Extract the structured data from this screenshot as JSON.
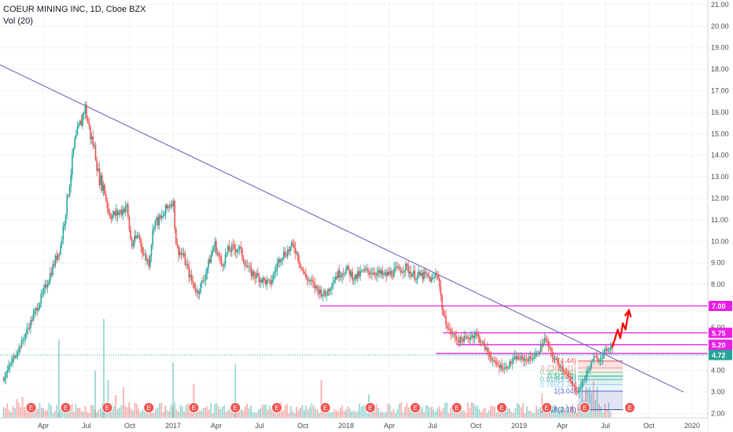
{
  "header": {
    "title": "COEUR MINING INC, 1D, Cboe BZX",
    "indicator": "Vol (20)"
  },
  "chart_data": {
    "type": "candlestick",
    "y_ticks": [
      "2.00",
      "3.00",
      "4.00",
      "5.00",
      "6.00",
      "7.00",
      "8.00",
      "9.00",
      "10.00",
      "11.00",
      "12.00",
      "13.00",
      "14.00",
      "15.00",
      "16.00",
      "17.00",
      "18.00",
      "19.00",
      "20.00",
      "21.00"
    ],
    "x_ticks": [
      {
        "label": "Apr",
        "t": 0.25
      },
      {
        "label": "Jul",
        "t": 0.5
      },
      {
        "label": "Oct",
        "t": 0.75
      },
      {
        "label": "2017",
        "t": 1.0
      },
      {
        "label": "Apr",
        "t": 1.25
      },
      {
        "label": "Jul",
        "t": 1.5
      },
      {
        "label": "Oct",
        "t": 1.75
      },
      {
        "label": "2018",
        "t": 2.0
      },
      {
        "label": "Apr",
        "t": 2.25
      },
      {
        "label": "Jul",
        "t": 2.5
      },
      {
        "label": "Oct",
        "t": 2.75
      },
      {
        "label": "2019",
        "t": 3.0
      },
      {
        "label": "Apr",
        "t": 3.25
      },
      {
        "label": "Jul",
        "t": 3.5
      },
      {
        "label": "Oct",
        "t": 3.75
      },
      {
        "label": "2020",
        "t": 4.0
      }
    ],
    "price_path": [
      [
        0.02,
        3.6
      ],
      [
        0.06,
        4.3
      ],
      [
        0.12,
        5.2
      ],
      [
        0.18,
        6.3
      ],
      [
        0.25,
        7.6
      ],
      [
        0.3,
        8.7
      ],
      [
        0.35,
        9.8
      ],
      [
        0.39,
        12.0
      ],
      [
        0.43,
        14.5
      ],
      [
        0.47,
        15.6
      ],
      [
        0.49,
        16.3
      ],
      [
        0.52,
        15.0
      ],
      [
        0.55,
        14.2
      ],
      [
        0.57,
        13.0
      ],
      [
        0.6,
        12.5
      ],
      [
        0.63,
        11.3
      ],
      [
        0.66,
        11.2
      ],
      [
        0.7,
        11.4
      ],
      [
        0.73,
        11.7
      ],
      [
        0.76,
        9.8
      ],
      [
        0.8,
        10.3
      ],
      [
        0.83,
        9.4
      ],
      [
        0.86,
        9.0
      ],
      [
        0.89,
        10.9
      ],
      [
        0.93,
        11.0
      ],
      [
        0.97,
        11.6
      ],
      [
        1.0,
        12.0
      ],
      [
        1.02,
        9.7
      ],
      [
        1.06,
        9.3
      ],
      [
        1.1,
        8.3
      ],
      [
        1.14,
        7.6
      ],
      [
        1.18,
        8.3
      ],
      [
        1.24,
        9.9
      ],
      [
        1.28,
        8.9
      ],
      [
        1.32,
        9.6
      ],
      [
        1.38,
        9.7
      ],
      [
        1.44,
        8.6
      ],
      [
        1.5,
        8.3
      ],
      [
        1.56,
        8.0
      ],
      [
        1.62,
        9.3
      ],
      [
        1.7,
        9.8
      ],
      [
        1.76,
        8.4
      ],
      [
        1.83,
        7.8
      ],
      [
        1.88,
        7.5
      ],
      [
        1.94,
        8.4
      ],
      [
        2.0,
        8.7
      ],
      [
        2.05,
        8.3
      ],
      [
        2.1,
        8.6
      ],
      [
        2.16,
        8.6
      ],
      [
        2.22,
        8.4
      ],
      [
        2.28,
        8.6
      ],
      [
        2.34,
        8.8
      ],
      [
        2.4,
        8.4
      ],
      [
        2.46,
        8.4
      ],
      [
        2.5,
        8.2
      ],
      [
        2.53,
        8.6
      ],
      [
        2.56,
        6.6
      ],
      [
        2.6,
        5.8
      ],
      [
        2.65,
        5.4
      ],
      [
        2.7,
        5.5
      ],
      [
        2.75,
        5.7
      ],
      [
        2.8,
        5.1
      ],
      [
        2.86,
        4.3
      ],
      [
        2.92,
        4.1
      ],
      [
        2.98,
        4.6
      ],
      [
        3.04,
        4.5
      ],
      [
        3.1,
        4.7
      ],
      [
        3.15,
        5.5
      ],
      [
        3.19,
        4.7
      ],
      [
        3.23,
        4.3
      ],
      [
        3.27,
        3.9
      ],
      [
        3.31,
        3.3
      ],
      [
        3.34,
        3.0
      ],
      [
        3.37,
        3.5
      ],
      [
        3.4,
        4.0
      ],
      [
        3.43,
        4.6
      ],
      [
        3.46,
        4.5
      ],
      [
        3.49,
        4.8
      ],
      [
        3.52,
        5.1
      ],
      [
        3.54,
        5.1
      ]
    ],
    "projection": [
      [
        3.54,
        5.1
      ],
      [
        3.57,
        5.9
      ],
      [
        3.585,
        5.5
      ],
      [
        3.6,
        6.2
      ],
      [
        3.615,
        5.9
      ],
      [
        3.635,
        6.8
      ]
    ],
    "trendline": {
      "from": [
        0.0,
        18.2
      ],
      "to": [
        3.95,
        3.0
      ]
    },
    "levels": [
      {
        "value": "7.00",
        "price": 7.0,
        "t_start": 1.85,
        "color": "#e91ee3"
      },
      {
        "value": "5.75",
        "price": 5.75,
        "t_start": 2.56,
        "color": "#e91ee3"
      },
      {
        "value": "5.20",
        "price": 5.2,
        "t_start": 2.64,
        "color": "#e91ee3"
      },
      {
        "value": "4.79",
        "price": 4.79,
        "t_start": 2.52,
        "color": "#e91ee3"
      }
    ],
    "last_price": {
      "value": "4.72",
      "price": 4.72,
      "color": "#26a69a"
    },
    "fib_levels": [
      {
        "label": "0(4.44)",
        "price": 4.44
      },
      {
        "label": "0.236(4.11)",
        "price": 4.11
      },
      {
        "label": "0.382(3.91)",
        "price": 3.91
      },
      {
        "label": "0.5(3.74)",
        "price": 3.74
      },
      {
        "label": "0.618(3.58)",
        "price": 3.58
      },
      {
        "label": "0.786(3.34)",
        "price": 3.34
      },
      {
        "label": "1(3.04)",
        "price": 3.04
      },
      {
        "label": "1.618(2.18)",
        "price": 2.18
      }
    ],
    "earnings_events": [
      0.18,
      0.38,
      0.62,
      0.86,
      1.12,
      1.36,
      1.6,
      1.88,
      2.14,
      2.4,
      2.64,
      2.9,
      3.16,
      3.38,
      3.64
    ],
    "earnings_label": "E"
  }
}
